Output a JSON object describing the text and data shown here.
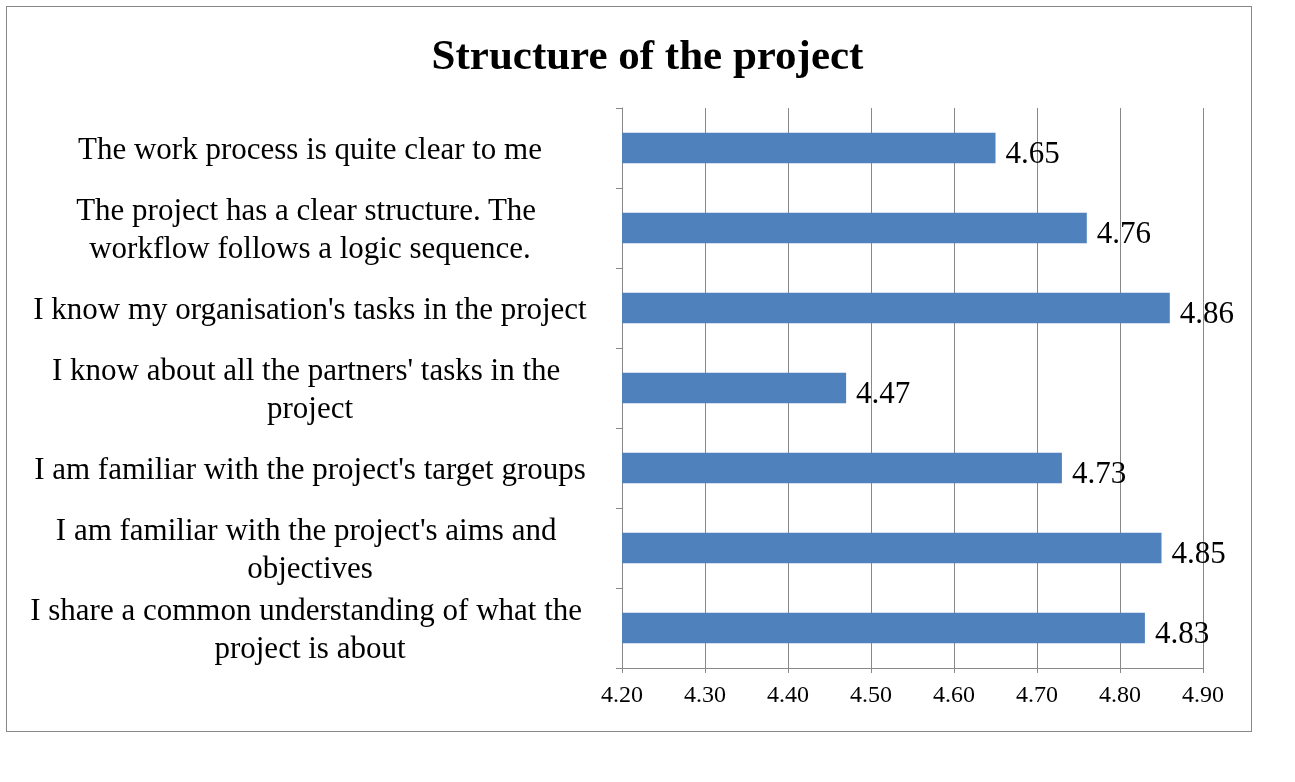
{
  "chart_data": {
    "type": "bar",
    "orientation": "horizontal",
    "title": "Structure of the project",
    "categories": [
      "The work process is quite clear to me",
      "The project has a clear structure. The workflow follows a logic sequence.",
      "I know my organisation's tasks in the project",
      "I know about all the partners' tasks in the project",
      "I am familiar with the project's target groups",
      "I am familiar with the project's aims and objectives",
      "I share a common understanding of what the project is about"
    ],
    "values": [
      4.65,
      4.76,
      4.86,
      4.47,
      4.73,
      4.85,
      4.83
    ],
    "color": "#4f81bd",
    "xlim": [
      4.2,
      4.9
    ],
    "xticks": [
      {
        "value": 4.2,
        "label": "4.20"
      },
      {
        "value": 4.3,
        "label": "4.30"
      },
      {
        "value": 4.4,
        "label": "4.40"
      },
      {
        "value": 4.5,
        "label": "4.50"
      },
      {
        "value": 4.6,
        "label": "4.60"
      },
      {
        "value": 4.7,
        "label": "4.70"
      },
      {
        "value": 4.8,
        "label": "4.80"
      },
      {
        "value": 4.9,
        "label": "4.90"
      }
    ],
    "grid": "x",
    "data_labels": true
  }
}
